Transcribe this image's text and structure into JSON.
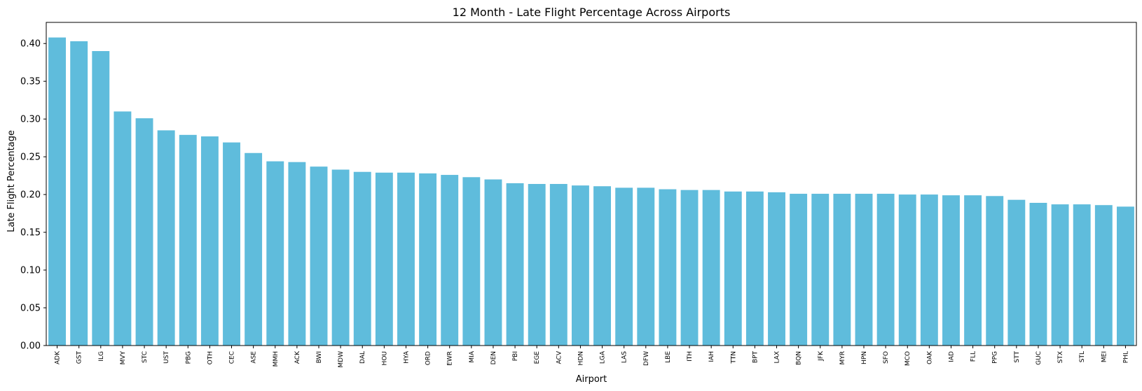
{
  "chart_data": {
    "type": "bar",
    "title": "12 Month - Late Flight Percentage Across Airports",
    "xlabel": "Airport",
    "ylabel": "Late Flight Percentage",
    "ylim": [
      0,
      0.428
    ],
    "yticks": [
      "0.00",
      "0.05",
      "0.10",
      "0.15",
      "0.20",
      "0.25",
      "0.30",
      "0.35",
      "0.40"
    ],
    "grid": false,
    "legend": "none",
    "bar_color": "#5fbcdc",
    "categories": [
      "ADK",
      "GST",
      "ILG",
      "MVY",
      "STC",
      "UST",
      "PBG",
      "OTH",
      "CEC",
      "ASE",
      "MMH",
      "ACK",
      "BWI",
      "MDW",
      "DAL",
      "HOU",
      "HYA",
      "ORD",
      "EWR",
      "MIA",
      "DEN",
      "PBI",
      "EGE",
      "ACV",
      "HDN",
      "LGA",
      "LAS",
      "DFW",
      "LBE",
      "ITH",
      "IAH",
      "TTN",
      "BPT",
      "LAX",
      "BQN",
      "JFK",
      "MYR",
      "HPN",
      "SFO",
      "MCO",
      "OAK",
      "IAD",
      "FLL",
      "PPG",
      "STT",
      "GUC",
      "STX",
      "STL",
      "MEI",
      "PHL"
    ],
    "values": [
      0.408,
      0.403,
      0.39,
      0.31,
      0.301,
      0.285,
      0.279,
      0.277,
      0.269,
      0.255,
      0.244,
      0.243,
      0.237,
      0.233,
      0.23,
      0.229,
      0.229,
      0.228,
      0.226,
      0.223,
      0.22,
      0.215,
      0.214,
      0.214,
      0.212,
      0.211,
      0.209,
      0.209,
      0.207,
      0.206,
      0.206,
      0.204,
      0.204,
      0.203,
      0.201,
      0.201,
      0.201,
      0.201,
      0.201,
      0.2,
      0.2,
      0.199,
      0.199,
      0.198,
      0.193,
      0.189,
      0.187,
      0.187,
      0.186,
      0.184
    ]
  }
}
